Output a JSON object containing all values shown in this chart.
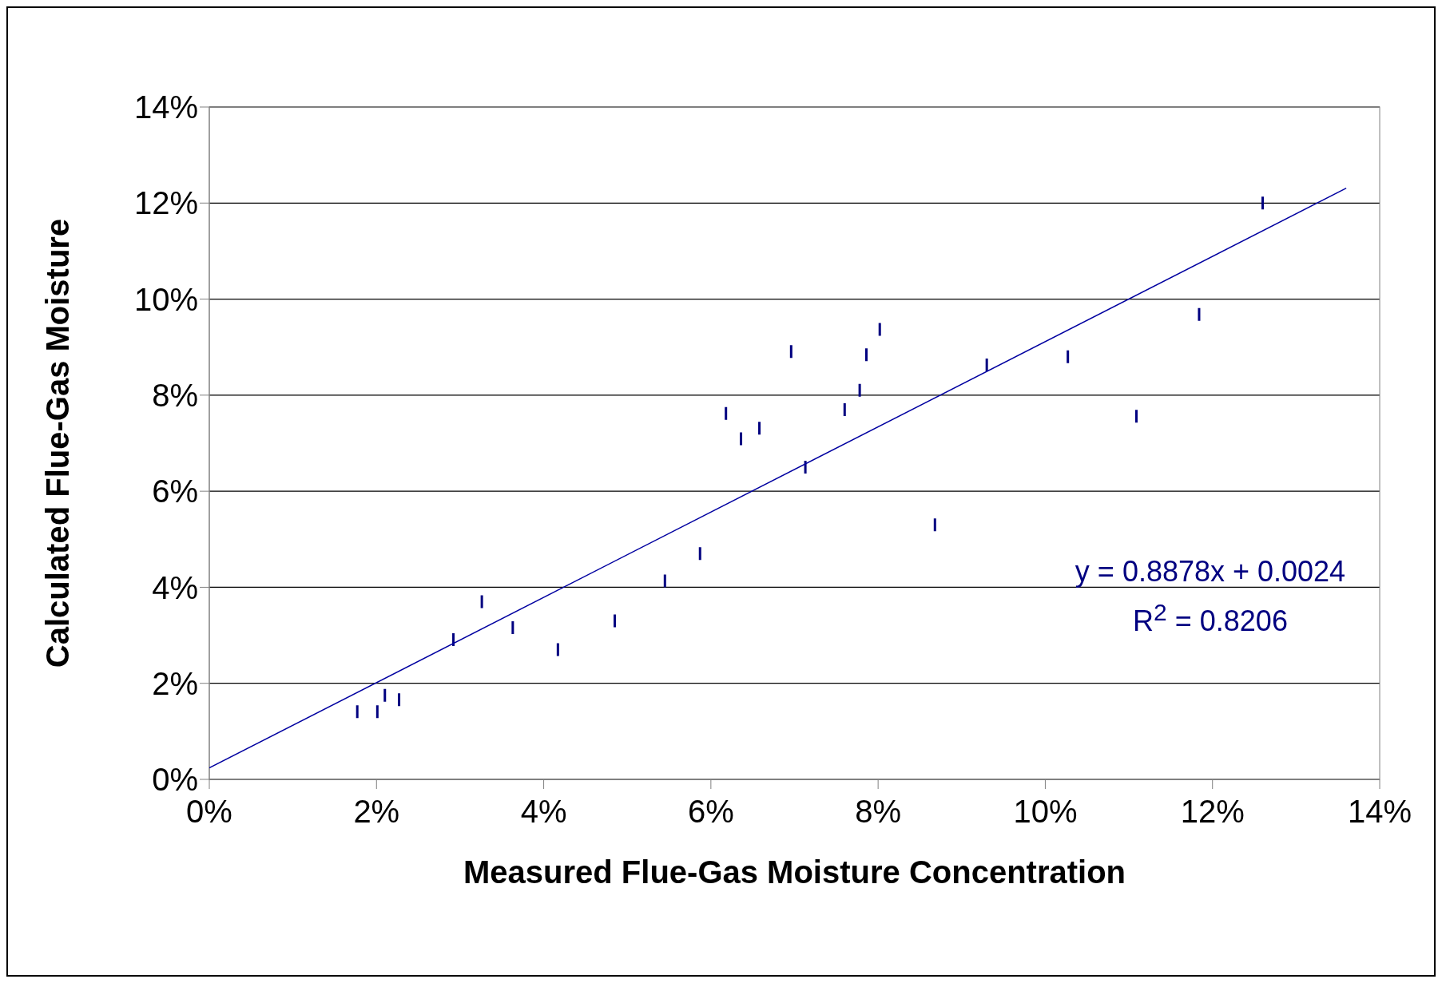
{
  "chart_data": {
    "type": "scatter",
    "xlabel": "Measured Flue-Gas Moisture Concentration",
    "ylabel": "Calculated Flue-Gas Moisture",
    "annotations": [
      "y = 0.8878x + 0.0024",
      "R$^{2}$ = 0.8206"
    ],
    "xlim": [
      0,
      14
    ],
    "ylim": [
      0,
      14
    ],
    "xticks": [
      {
        "value": 0,
        "label": "0%"
      },
      {
        "value": 2,
        "label": "2%"
      },
      {
        "value": 4,
        "label": "4%"
      },
      {
        "value": 6,
        "label": "6%"
      },
      {
        "value": 8,
        "label": "8%"
      },
      {
        "value": 10,
        "label": "10%"
      },
      {
        "value": 12,
        "label": "12%"
      },
      {
        "value": 14,
        "label": "14%"
      }
    ],
    "yticks": [
      {
        "value": 0,
        "label": "0%"
      },
      {
        "value": 2,
        "label": "2%"
      },
      {
        "value": 4,
        "label": "4%"
      },
      {
        "value": 6,
        "label": "6%"
      },
      {
        "value": 8,
        "label": "8%"
      },
      {
        "value": 10,
        "label": "10%"
      },
      {
        "value": 12,
        "label": "12%"
      },
      {
        "value": 14,
        "label": "14%"
      }
    ],
    "grid": "y",
    "legend": false,
    "x": [
      1.77,
      2.01,
      2.1,
      2.27,
      2.92,
      3.26,
      3.63,
      4.17,
      4.85,
      5.45,
      5.87,
      6.18,
      6.36,
      6.58,
      6.96,
      7.13,
      7.6,
      7.78,
      7.86,
      8.02,
      8.68,
      9.3,
      10.27,
      11.09,
      11.84,
      12.6
    ],
    "series": [
      {
        "type": "scatter",
        "color": "#000080",
        "values": [
          1.41,
          1.41,
          1.75,
          1.66,
          2.91,
          3.7,
          3.16,
          2.7,
          3.3,
          4.13,
          4.7,
          7.62,
          7.09,
          7.31,
          8.91,
          6.5,
          7.7,
          8.1,
          8.84,
          9.37,
          5.3,
          8.63,
          8.8,
          7.56,
          9.68,
          12.0
        ]
      },
      {
        "type": "line",
        "color": "#0000a0",
        "x": [
          0,
          13.6
        ],
        "values": [
          0.24,
          12.31
        ]
      }
    ]
  }
}
